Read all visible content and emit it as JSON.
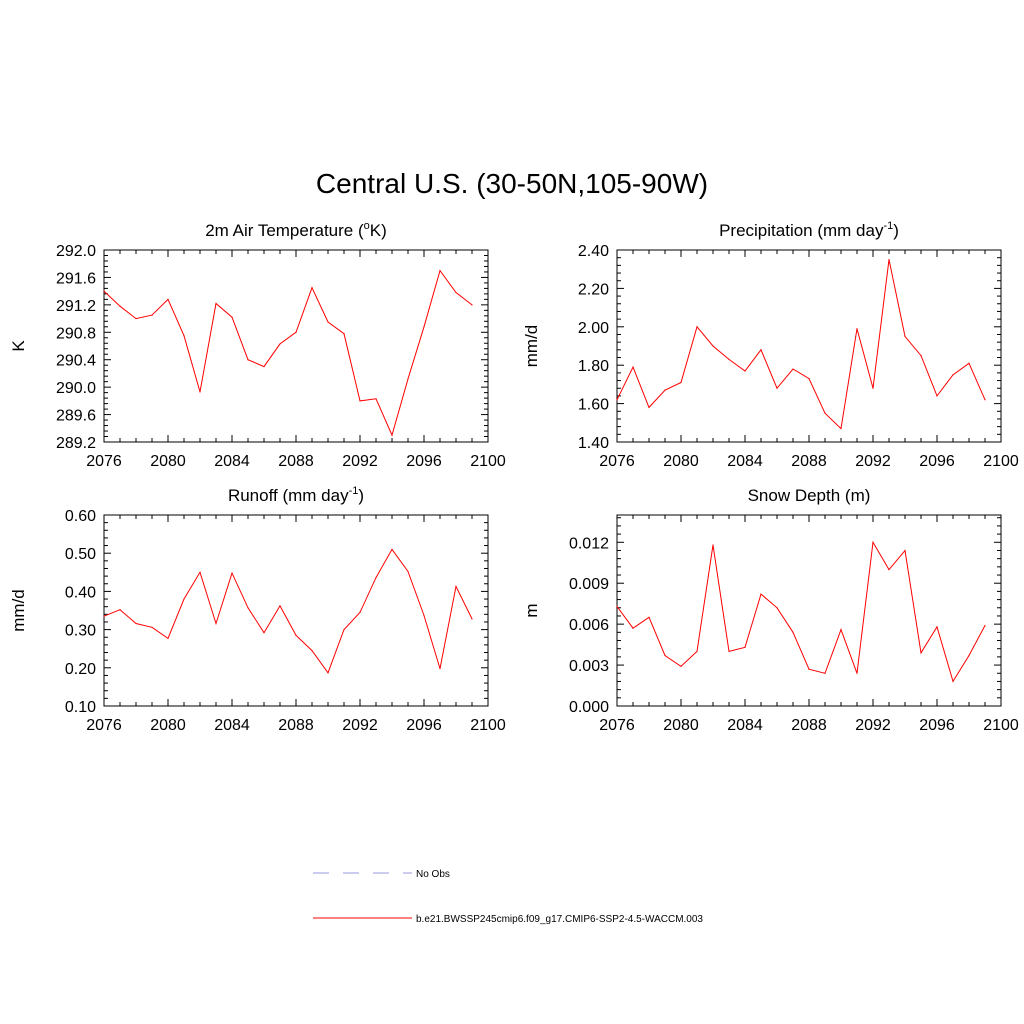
{
  "title": "Central U.S. (30-50N,105-90W)",
  "colors": {
    "model": "#ff0000",
    "obs": "#9999dd",
    "axis": "#000000"
  },
  "legend": {
    "obs_label": "No Obs",
    "model_label": "b.e21.BWSSP245cmip6.f09_g17.CMIP6-SSP2-4.5-WACCM.003"
  },
  "chart_data": [
    {
      "type": "line",
      "title": "2m Air Temperature (",
      "title_sup": "o",
      "title_rest": "K)",
      "ylabel": "K",
      "xlim": [
        2076,
        2100
      ],
      "ylim": [
        289.2,
        292.0
      ],
      "xticks": [
        2076,
        2080,
        2084,
        2088,
        2092,
        2096,
        2100
      ],
      "yticks": [
        289.2,
        289.6,
        290.0,
        290.4,
        290.8,
        291.2,
        291.6,
        292.0
      ],
      "ytick_labels": [
        "289.2",
        "289.6",
        "290.0",
        "290.4",
        "290.8",
        "291.2",
        "291.6",
        "292.0"
      ],
      "x": [
        2076,
        2077,
        2078,
        2079,
        2080,
        2081,
        2082,
        2083,
        2084,
        2085,
        2086,
        2087,
        2088,
        2089,
        2090,
        2091,
        2092,
        2093,
        2094,
        2095,
        2096,
        2097,
        2098,
        2099
      ],
      "y": [
        291.4,
        291.18,
        291.0,
        291.05,
        291.28,
        290.75,
        289.93,
        291.22,
        291.02,
        290.4,
        290.3,
        290.63,
        290.8,
        291.45,
        290.95,
        290.78,
        289.8,
        289.83,
        289.3,
        290.12,
        290.88,
        291.7,
        291.38,
        291.2
      ]
    },
    {
      "type": "line",
      "title": "Precipitation (mm day",
      "title_sup": "-1",
      "title_rest": ")",
      "ylabel": "mm/d",
      "xlim": [
        2076,
        2100
      ],
      "ylim": [
        1.4,
        2.4
      ],
      "xticks": [
        2076,
        2080,
        2084,
        2088,
        2092,
        2096,
        2100
      ],
      "yticks": [
        1.4,
        1.6,
        1.8,
        2.0,
        2.2,
        2.4
      ],
      "ytick_labels": [
        "1.40",
        "1.60",
        "1.80",
        "2.00",
        "2.20",
        "2.40"
      ],
      "x": [
        2076,
        2077,
        2078,
        2079,
        2080,
        2081,
        2082,
        2083,
        2084,
        2085,
        2086,
        2087,
        2088,
        2089,
        2090,
        2091,
        2092,
        2093,
        2094,
        2095,
        2096,
        2097,
        2098,
        2099
      ],
      "y": [
        1.62,
        1.79,
        1.58,
        1.67,
        1.71,
        2.0,
        1.9,
        1.83,
        1.77,
        1.88,
        1.68,
        1.78,
        1.73,
        1.55,
        1.47,
        1.99,
        1.68,
        2.35,
        1.95,
        1.85,
        1.64,
        1.75,
        1.81,
        1.62
      ]
    },
    {
      "type": "line",
      "title": "Runoff (mm day",
      "title_sup": "-1",
      "title_rest": ")",
      "ylabel": "mm/d",
      "xlim": [
        2076,
        2100
      ],
      "ylim": [
        0.1,
        0.6
      ],
      "xticks": [
        2076,
        2080,
        2084,
        2088,
        2092,
        2096,
        2100
      ],
      "yticks": [
        0.1,
        0.2,
        0.3,
        0.4,
        0.5,
        0.6
      ],
      "ytick_labels": [
        "0.10",
        "0.20",
        "0.30",
        "0.40",
        "0.50",
        "0.60"
      ],
      "x": [
        2076,
        2077,
        2078,
        2079,
        2080,
        2081,
        2082,
        2083,
        2084,
        2085,
        2086,
        2087,
        2088,
        2089,
        2090,
        2091,
        2092,
        2093,
        2094,
        2095,
        2096,
        2097,
        2098,
        2099
      ],
      "y": [
        0.335,
        0.352,
        0.316,
        0.306,
        0.277,
        0.38,
        0.45,
        0.316,
        0.448,
        0.357,
        0.292,
        0.362,
        0.285,
        0.245,
        0.187,
        0.3,
        0.345,
        0.436,
        0.51,
        0.452,
        0.337,
        0.198,
        0.413,
        0.328
      ]
    },
    {
      "type": "line",
      "title": "Snow Depth (m)",
      "title_sup": "",
      "title_rest": "",
      "ylabel": "m",
      "xlim": [
        2076,
        2100
      ],
      "ylim": [
        0.0,
        0.014
      ],
      "xticks": [
        2076,
        2080,
        2084,
        2088,
        2092,
        2096,
        2100
      ],
      "yticks": [
        0.0,
        0.003,
        0.006,
        0.009,
        0.012
      ],
      "ytick_labels": [
        "0.000",
        "0.003",
        "0.006",
        "0.009",
        "0.012"
      ],
      "x": [
        2076,
        2077,
        2078,
        2079,
        2080,
        2081,
        2082,
        2083,
        2084,
        2085,
        2086,
        2087,
        2088,
        2089,
        2090,
        2091,
        2092,
        2093,
        2094,
        2095,
        2096,
        2097,
        2098,
        2099
      ],
      "y": [
        0.0073,
        0.0057,
        0.0065,
        0.0037,
        0.0029,
        0.004,
        0.0118,
        0.004,
        0.0043,
        0.0082,
        0.0072,
        0.0054,
        0.0027,
        0.0024,
        0.0056,
        0.0024,
        0.012,
        0.01,
        0.0114,
        0.0039,
        0.0058,
        0.0018,
        0.0037,
        0.0059
      ]
    }
  ]
}
